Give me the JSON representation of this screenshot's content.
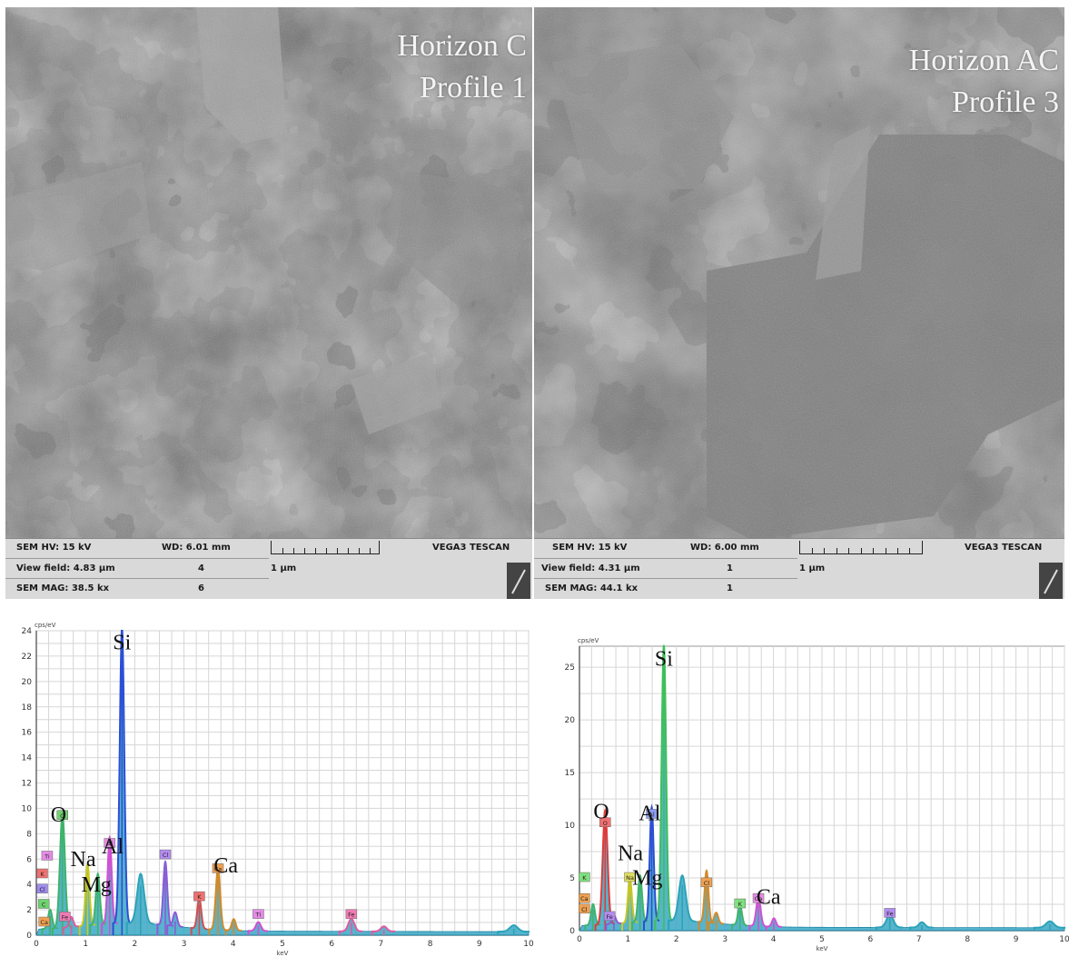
{
  "panels": [
    {
      "label_line1": "Horizon C",
      "label_line2": "Profile 1",
      "sem_hv": "SEM HV: 15 kV",
      "wd": "WD: 6.01 mm",
      "view_field": "View field: 4.83 µm",
      "sem_mag": "SEM MAG: 38.5 kx",
      "det1": "4",
      "det2": "6",
      "scale": "1 µm",
      "brand": "VEGA3 TESCAN"
    },
    {
      "label_line1": "Horizon AC",
      "label_line2": "Profile 3",
      "sem_hv": "SEM HV: 15 kV",
      "wd": "WD: 6.00 mm",
      "view_field": "View field: 4.31 µm",
      "sem_mag": "SEM MAG: 44.1 kx",
      "det1": "1",
      "det2": "1",
      "scale": "1 µm",
      "brand": "VEGA3 TESCAN"
    }
  ],
  "chart_data": [
    {
      "type": "line",
      "ylabel": "cps/eV",
      "xlabel": "keV",
      "xlim": [
        0,
        10
      ],
      "ylim": [
        0,
        24
      ],
      "yticks": [
        0,
        2,
        4,
        6,
        8,
        10,
        12,
        14,
        16,
        18,
        20,
        22,
        24
      ],
      "xticks": [
        0,
        1,
        2,
        3,
        4,
        5,
        6,
        7,
        8,
        9,
        10
      ],
      "peaks": [
        {
          "x": 0.28,
          "y": 1.5,
          "w": 0.04,
          "color": "#3fb36a"
        },
        {
          "x": 0.53,
          "y": 9.0,
          "w": 0.05,
          "color": "#3fb36a"
        },
        {
          "x": 0.71,
          "y": 0.8,
          "w": 0.04,
          "color": "#e05aa0"
        },
        {
          "x": 1.04,
          "y": 4.8,
          "w": 0.04,
          "color": "#c8c820"
        },
        {
          "x": 1.25,
          "y": 4.0,
          "w": 0.04,
          "color": "#3fb36a"
        },
        {
          "x": 1.49,
          "y": 6.8,
          "w": 0.04,
          "color": "#d24fd2"
        },
        {
          "x": 1.74,
          "y": 23.4,
          "w": 0.045,
          "color": "#2b4fd6"
        },
        {
          "x": 2.12,
          "y": 3.9,
          "w": 0.07,
          "color": "#2aa3b8"
        },
        {
          "x": 2.62,
          "y": 5.0,
          "w": 0.04,
          "color": "#8a5cd6"
        },
        {
          "x": 2.82,
          "y": 1.1,
          "w": 0.04,
          "color": "#8a5cd6"
        },
        {
          "x": 3.31,
          "y": 2.4,
          "w": 0.04,
          "color": "#d24f4f"
        },
        {
          "x": 3.69,
          "y": 4.8,
          "w": 0.045,
          "color": "#d28a2a"
        },
        {
          "x": 4.01,
          "y": 0.9,
          "w": 0.04,
          "color": "#d28a2a"
        },
        {
          "x": 4.51,
          "y": 0.7,
          "w": 0.05,
          "color": "#d24fd2"
        },
        {
          "x": 6.4,
          "y": 1.0,
          "w": 0.06,
          "color": "#e05aa0"
        },
        {
          "x": 7.06,
          "y": 0.4,
          "w": 0.06,
          "color": "#e05aa0"
        },
        {
          "x": 9.7,
          "y": 0.5,
          "w": 0.08,
          "color": "#2aa3b8"
        }
      ],
      "element_labels": [
        {
          "text": "Si",
          "x": 1.74,
          "y": 23.4
        },
        {
          "text": "O",
          "x": 0.45,
          "y": 9.8
        },
        {
          "text": "Na",
          "x": 0.95,
          "y": 6.3
        },
        {
          "text": "Al",
          "x": 1.55,
          "y": 7.3
        },
        {
          "text": "Mg",
          "x": 1.22,
          "y": 4.3
        },
        {
          "text": "Ca",
          "x": 3.85,
          "y": 5.8
        }
      ],
      "badges": [
        {
          "text": "O",
          "x": 0.53,
          "y": 9.4,
          "color": "#6fd36f"
        },
        {
          "text": "Ti",
          "x": 0.22,
          "y": 6.2,
          "color": "#e58ce5"
        },
        {
          "text": "K",
          "x": 0.12,
          "y": 4.8,
          "color": "#f07070"
        },
        {
          "text": "Cl",
          "x": 0.12,
          "y": 3.6,
          "color": "#a08cf0"
        },
        {
          "text": "C",
          "x": 0.15,
          "y": 2.4,
          "color": "#6fd36f"
        },
        {
          "text": "Ca",
          "x": 0.16,
          "y": 1.0,
          "color": "#f0a050"
        },
        {
          "text": "Fe",
          "x": 0.58,
          "y": 1.4,
          "color": "#f07ab4"
        },
        {
          "text": "Al",
          "x": 1.49,
          "y": 7.2,
          "color": "#e58ce5"
        },
        {
          "text": "Cl",
          "x": 2.62,
          "y": 6.3,
          "color": "#b48cf0"
        },
        {
          "text": "Ca",
          "x": 3.69,
          "y": 5.2,
          "color": "#f0a050"
        },
        {
          "text": "K",
          "x": 3.31,
          "y": 3.0,
          "color": "#f07070"
        },
        {
          "text": "Ti",
          "x": 4.51,
          "y": 1.6,
          "color": "#e58ce5"
        },
        {
          "text": "Fe",
          "x": 6.4,
          "y": 1.6,
          "color": "#f07ab4"
        }
      ]
    },
    {
      "type": "line",
      "ylabel": "cps/eV",
      "xlabel": "keV",
      "xlim": [
        0,
        10
      ],
      "ylim": [
        0,
        27
      ],
      "yticks": [
        0,
        5,
        10,
        15,
        20,
        25
      ],
      "xticks": [
        0,
        1,
        2,
        3,
        4,
        5,
        6,
        7,
        8,
        9,
        10
      ],
      "peaks": [
        {
          "x": 0.28,
          "y": 2.0,
          "w": 0.04,
          "color": "#3fb36a"
        },
        {
          "x": 0.53,
          "y": 10.8,
          "w": 0.05,
          "color": "#e03a3a"
        },
        {
          "x": 0.71,
          "y": 0.8,
          "w": 0.04,
          "color": "#8a5cd6"
        },
        {
          "x": 1.04,
          "y": 4.2,
          "w": 0.04,
          "color": "#c8c820"
        },
        {
          "x": 1.25,
          "y": 4.4,
          "w": 0.04,
          "color": "#3fb36a"
        },
        {
          "x": 1.49,
          "y": 10.8,
          "w": 0.04,
          "color": "#2b4fd6"
        },
        {
          "x": 1.74,
          "y": 26.2,
          "w": 0.045,
          "color": "#3fbf5a"
        },
        {
          "x": 2.12,
          "y": 4.3,
          "w": 0.07,
          "color": "#2aa3b8"
        },
        {
          "x": 2.62,
          "y": 4.9,
          "w": 0.04,
          "color": "#d28a2a"
        },
        {
          "x": 2.82,
          "y": 1.0,
          "w": 0.04,
          "color": "#d28a2a"
        },
        {
          "x": 3.31,
          "y": 1.9,
          "w": 0.04,
          "color": "#3fb36a"
        },
        {
          "x": 3.69,
          "y": 2.7,
          "w": 0.045,
          "color": "#d24fd2"
        },
        {
          "x": 4.01,
          "y": 0.8,
          "w": 0.04,
          "color": "#d24fd2"
        },
        {
          "x": 6.4,
          "y": 1.2,
          "w": 0.07,
          "color": "#2aa3b8"
        },
        {
          "x": 7.06,
          "y": 0.5,
          "w": 0.06,
          "color": "#2aa3b8"
        },
        {
          "x": 9.7,
          "y": 0.6,
          "w": 0.08,
          "color": "#2aa3b8"
        }
      ],
      "element_labels": [
        {
          "text": "Si",
          "x": 1.74,
          "y": 26.2
        },
        {
          "text": "O",
          "x": 0.45,
          "y": 11.7
        },
        {
          "text": "Al",
          "x": 1.45,
          "y": 11.5
        },
        {
          "text": "Na",
          "x": 1.05,
          "y": 7.7
        },
        {
          "text": "Mg",
          "x": 1.4,
          "y": 5.4
        },
        {
          "text": "Ca",
          "x": 3.9,
          "y": 3.6
        }
      ],
      "badges": [
        {
          "text": "O",
          "x": 0.53,
          "y": 10.2,
          "color": "#f07070"
        },
        {
          "text": "Al",
          "x": 1.49,
          "y": 11.0,
          "color": "#8c9cf0"
        },
        {
          "text": "K",
          "x": 0.1,
          "y": 5.0,
          "color": "#7ee07e"
        },
        {
          "text": "Ca",
          "x": 0.1,
          "y": 3.0,
          "color": "#f0a050"
        },
        {
          "text": "Cl",
          "x": 0.1,
          "y": 2.0,
          "color": "#f0a050"
        },
        {
          "text": "Fe",
          "x": 0.62,
          "y": 1.3,
          "color": "#b48cf0"
        },
        {
          "text": "Na",
          "x": 1.04,
          "y": 5.0,
          "color": "#e0e060"
        },
        {
          "text": "Cl",
          "x": 2.62,
          "y": 4.5,
          "color": "#f0a050"
        },
        {
          "text": "K",
          "x": 3.31,
          "y": 2.5,
          "color": "#7ee07e"
        },
        {
          "text": "Ca",
          "x": 3.69,
          "y": 3.0,
          "color": "#e58ce5"
        },
        {
          "text": "Fe",
          "x": 6.4,
          "y": 1.6,
          "color": "#b48cf0"
        }
      ]
    }
  ]
}
